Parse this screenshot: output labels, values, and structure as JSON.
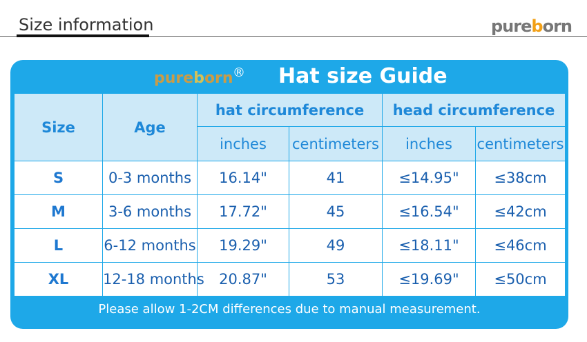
{
  "header": {
    "title": "Size information",
    "logo": {
      "pre": "pure",
      "mark": "b",
      "post": "orn"
    }
  },
  "card": {
    "logo": {
      "pre": "pure",
      "mark": "b",
      "post": "orn"
    },
    "registered": "®",
    "title": "Hat size Guide"
  },
  "table": {
    "header_row1": [
      "Size",
      "Age",
      "hat circumference",
      "head circumference"
    ],
    "header_row2": [
      "inches",
      "centimeters",
      "inches",
      "centimeters"
    ],
    "rows": [
      [
        "S",
        "0-3 months",
        "16.14\"",
        "41",
        "≤14.95\"",
        "≤38cm"
      ],
      [
        "M",
        "3-6 months",
        "17.72\"",
        "45",
        "≤16.54\"",
        "≤42cm"
      ],
      [
        "L",
        "6-12 months",
        "19.29\"",
        "49",
        "≤18.11\"",
        "≤46cm"
      ],
      [
        "XL",
        "12-18 months",
        "20.87\"",
        "53",
        "≤19.69\"",
        "≤50cm"
      ]
    ]
  },
  "footer": {
    "note": "Please allow 1-2CM differences due to manual measurement."
  }
}
